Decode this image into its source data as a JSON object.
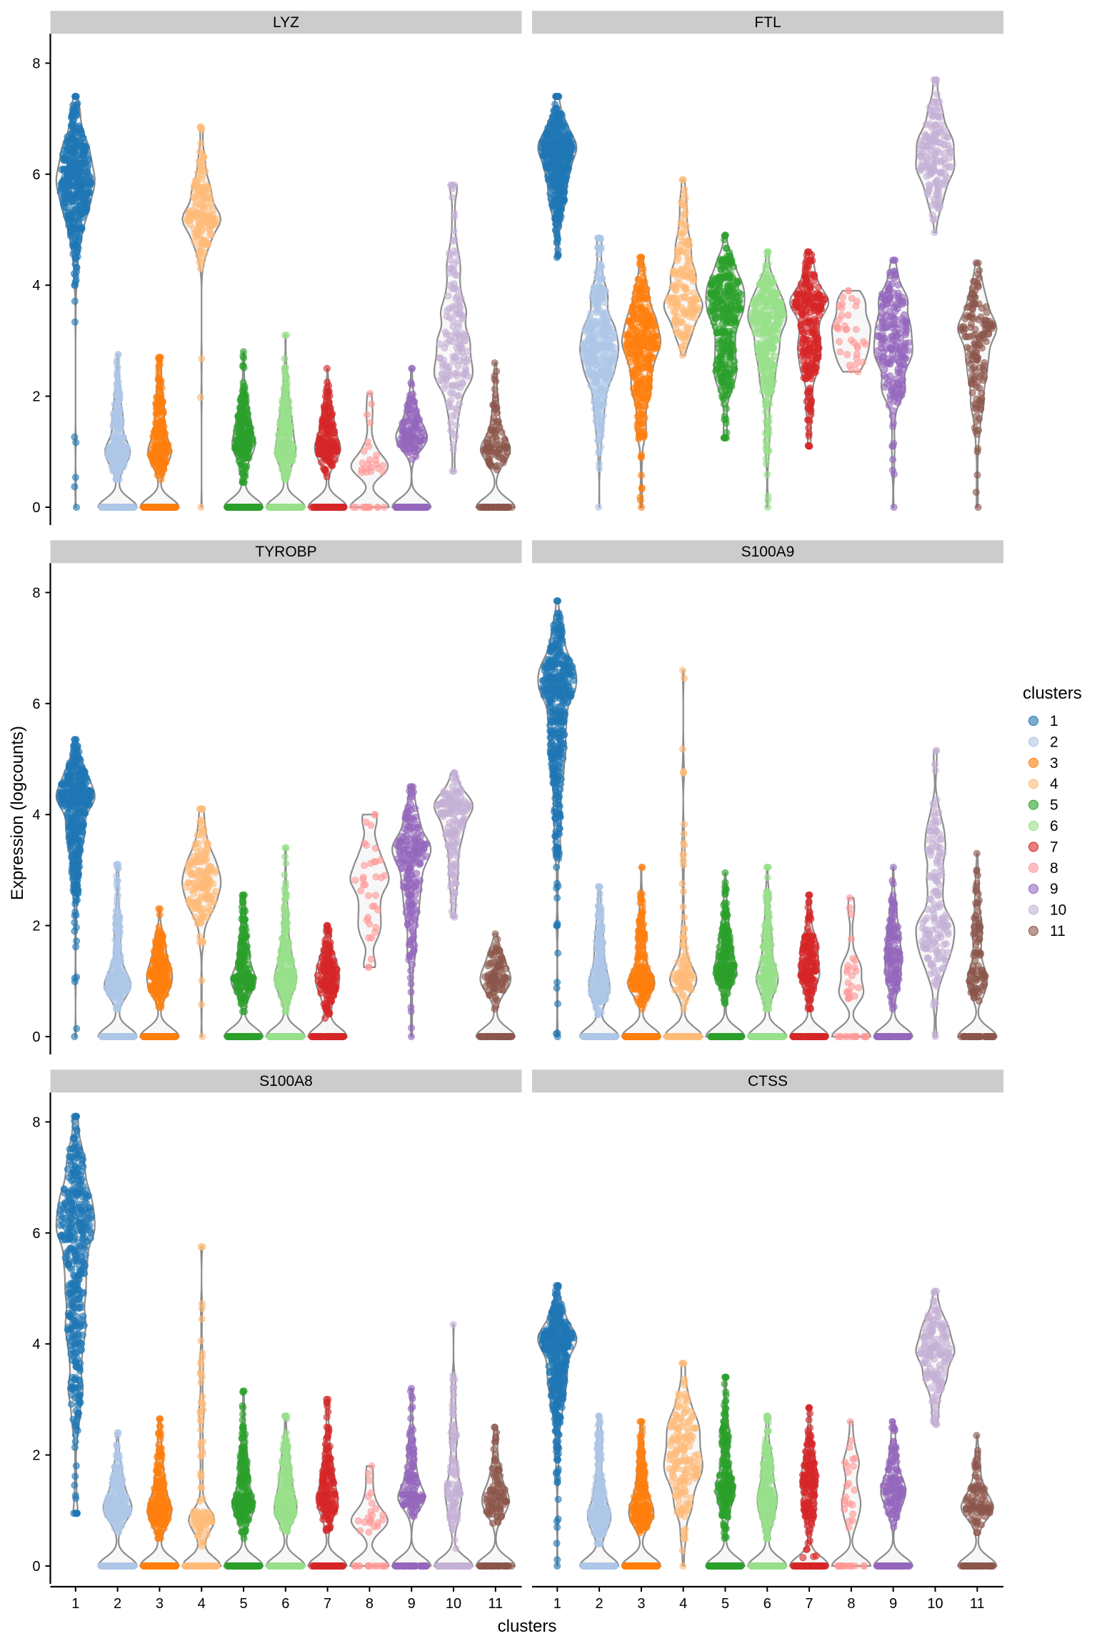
{
  "chart_data": {
    "type": "violin",
    "xlabel": "clusters",
    "ylabel": "Expression (logcounts)",
    "categories": [
      "1",
      "2",
      "3",
      "4",
      "5",
      "6",
      "7",
      "8",
      "9",
      "10",
      "11"
    ],
    "yticks": [
      "0",
      "2",
      "4",
      "6",
      "8"
    ],
    "ylim": [
      -0.3,
      8.5
    ],
    "grid": false,
    "legend": {
      "title": "clusters",
      "placement": "right",
      "labels": [
        "1",
        "2",
        "3",
        "4",
        "5",
        "6",
        "7",
        "8",
        "9",
        "10",
        "11"
      ]
    },
    "colors": [
      "#1f77b4",
      "#aec7e8",
      "#ff7f0e",
      "#ffbb78",
      "#2ca02c",
      "#98df8a",
      "#d62728",
      "#ff9896",
      "#9467bd",
      "#c5b0d5",
      "#8c564b"
    ],
    "violin_fill": "#f7f7f7",
    "violin_stroke": "#8c8c8c",
    "facets": [
      {
        "gene": "LYZ",
        "clusters": [
          {
            "median": 5.85,
            "low": 4.0,
            "max": 7.4,
            "min": 0,
            "zeros": false
          },
          {
            "median": 1.1,
            "low": 0.5,
            "max": 2.75,
            "min": 0.5,
            "zeros": true
          },
          {
            "median": 1.1,
            "low": 0.5,
            "max": 2.7,
            "min": 0.5,
            "zeros": true
          },
          {
            "median": 5.3,
            "low": 4.3,
            "max": 6.85,
            "min": 0,
            "zeros": false
          },
          {
            "median": 1.25,
            "low": 0.45,
            "max": 2.8,
            "min": 0.45,
            "zeros": true
          },
          {
            "median": 1.2,
            "low": 0.4,
            "max": 3.1,
            "min": 0.4,
            "zeros": true
          },
          {
            "median": 1.2,
            "low": 0.55,
            "max": 2.5,
            "min": 0.55,
            "zeros": true
          },
          {
            "median": 0.8,
            "low": 0.5,
            "max": 2.05,
            "min": 0.5,
            "zeros": true
          },
          {
            "median": 1.3,
            "low": 0.85,
            "max": 2.5,
            "min": 0.85,
            "zeros": true
          },
          {
            "median": 2.9,
            "low": 0.65,
            "max": 5.8,
            "min": 0.65,
            "zeros": false
          },
          {
            "median": 1.15,
            "low": 0.6,
            "max": 2.6,
            "min": 0.6,
            "zeros": true
          }
        ]
      },
      {
        "gene": "FTL",
        "clusters": [
          {
            "median": 6.3,
            "low": 4.5,
            "max": 7.4,
            "min": 4.5,
            "zeros": false
          },
          {
            "median": 3.0,
            "low": 1.2,
            "max": 4.85,
            "min": 0,
            "zeros": false
          },
          {
            "median": 3.0,
            "low": 0.9,
            "max": 4.5,
            "min": 0,
            "zeros": false
          },
          {
            "median": 3.8,
            "low": 2.65,
            "max": 5.9,
            "min": 2.65,
            "zeros": false
          },
          {
            "median": 3.5,
            "low": 1.25,
            "max": 4.9,
            "min": 1.25,
            "zeros": false
          },
          {
            "median": 3.3,
            "low": 1.0,
            "max": 4.6,
            "min": 0,
            "zeros": false
          },
          {
            "median": 3.5,
            "low": 1.1,
            "max": 4.6,
            "min": 1.1,
            "zeros": false
          },
          {
            "median": 3.2,
            "low": 2.3,
            "max": 3.9,
            "min": 2.3,
            "zeros": false
          },
          {
            "median": 3.2,
            "low": 1.1,
            "max": 4.45,
            "min": 0,
            "zeros": false
          },
          {
            "median": 6.3,
            "low": 4.95,
            "max": 7.7,
            "min": 4.95,
            "zeros": false
          },
          {
            "median": 3.1,
            "low": 1.0,
            "max": 4.4,
            "min": 0,
            "zeros": false
          }
        ]
      },
      {
        "gene": "TYROBP",
        "clusters": [
          {
            "median": 4.2,
            "low": 1.9,
            "max": 5.35,
            "min": 0,
            "zeros": false
          },
          {
            "median": 1.0,
            "low": 0.5,
            "max": 3.1,
            "min": 0.5,
            "zeros": true
          },
          {
            "median": 1.1,
            "low": 0.5,
            "max": 2.3,
            "min": 0.5,
            "zeros": true
          },
          {
            "median": 2.9,
            "low": 1.7,
            "max": 4.1,
            "min": 0,
            "zeros": false
          },
          {
            "median": 1.1,
            "low": 0.45,
            "max": 2.55,
            "min": 0.45,
            "zeros": true
          },
          {
            "median": 1.2,
            "low": 0.45,
            "max": 3.4,
            "min": 0.45,
            "zeros": true
          },
          {
            "median": 1.1,
            "low": 0.25,
            "max": 2.0,
            "min": 0.25,
            "zeros": true
          },
          {
            "median": 2.7,
            "low": 1.25,
            "max": 4.0,
            "min": 1.25,
            "zeros": false
          },
          {
            "median": 3.2,
            "low": 0.8,
            "max": 4.5,
            "min": 0,
            "zeros": false
          },
          {
            "median": 4.0,
            "low": 2.0,
            "max": 4.75,
            "min": 2.0,
            "zeros": false
          },
          {
            "median": 1.1,
            "low": 0.5,
            "max": 1.85,
            "min": 0.5,
            "zeros": true
          }
        ]
      },
      {
        "gene": "S100A9",
        "clusters": [
          {
            "median": 6.1,
            "low": 2.0,
            "max": 7.85,
            "min": 0,
            "zeros": false
          },
          {
            "median": 1.1,
            "low": 0.4,
            "max": 2.7,
            "min": 0.4,
            "zeros": true
          },
          {
            "median": 1.1,
            "low": 0.5,
            "max": 3.05,
            "min": 0.5,
            "zeros": true
          },
          {
            "median": 1.2,
            "low": 0.5,
            "max": 6.6,
            "min": 0.5,
            "zeros": true
          },
          {
            "median": 1.3,
            "low": 0.6,
            "max": 2.95,
            "min": 0.6,
            "zeros": true
          },
          {
            "median": 1.2,
            "low": 0.5,
            "max": 3.05,
            "min": 0.5,
            "zeros": true
          },
          {
            "median": 1.3,
            "low": 0.5,
            "max": 2.55,
            "min": 0.5,
            "zeros": true
          },
          {
            "median": 0.9,
            "low": 0.6,
            "max": 2.5,
            "min": 0.6,
            "zeros": true
          },
          {
            "median": 1.5,
            "low": 0.5,
            "max": 3.05,
            "min": 0.5,
            "zeros": true
          },
          {
            "median": 2.2,
            "low": 0.6,
            "max": 5.15,
            "min": 0,
            "zeros": false
          },
          {
            "median": 1.2,
            "low": 0.6,
            "max": 3.3,
            "min": 0.6,
            "zeros": true
          }
        ]
      },
      {
        "gene": "S100A8",
        "clusters": [
          {
            "median": 5.9,
            "low": 0.95,
            "max": 8.1,
            "min": 0.95,
            "zeros": false
          },
          {
            "median": 1.1,
            "low": 0.6,
            "max": 2.4,
            "min": 0.6,
            "zeros": true
          },
          {
            "median": 1.1,
            "low": 0.5,
            "max": 2.65,
            "min": 0.5,
            "zeros": true
          },
          {
            "median": 1.0,
            "low": 0.3,
            "max": 5.75,
            "min": 0.3,
            "zeros": true
          },
          {
            "median": 1.3,
            "low": 0.5,
            "max": 3.15,
            "min": 0.5,
            "zeros": true
          },
          {
            "median": 1.2,
            "low": 0.55,
            "max": 2.7,
            "min": 0.55,
            "zeros": true
          },
          {
            "median": 1.3,
            "low": 0.6,
            "max": 3.0,
            "min": 0.6,
            "zeros": true
          },
          {
            "median": 0.9,
            "low": 0.5,
            "max": 1.8,
            "min": 0.5,
            "zeros": true
          },
          {
            "median": 1.3,
            "low": 0.9,
            "max": 3.2,
            "min": 0.9,
            "zeros": true
          },
          {
            "median": 1.4,
            "low": 0.3,
            "max": 4.35,
            "min": 0.3,
            "zeros": true
          },
          {
            "median": 1.2,
            "low": 0.7,
            "max": 2.5,
            "min": 0.7,
            "zeros": true
          }
        ]
      },
      {
        "gene": "CTSS",
        "clusters": [
          {
            "median": 3.9,
            "low": 1.5,
            "max": 5.05,
            "min": 0,
            "zeros": false
          },
          {
            "median": 1.0,
            "low": 0.4,
            "max": 2.7,
            "min": 0.4,
            "zeros": true
          },
          {
            "median": 1.1,
            "low": 0.6,
            "max": 2.6,
            "min": 0.6,
            "zeros": true
          },
          {
            "median": 1.9,
            "low": 0.5,
            "max": 3.65,
            "min": 0,
            "zeros": false
          },
          {
            "median": 1.5,
            "low": 0.5,
            "max": 3.4,
            "min": 0.5,
            "zeros": true
          },
          {
            "median": 1.3,
            "low": 0.5,
            "max": 2.7,
            "min": 0.5,
            "zeros": true
          },
          {
            "median": 1.5,
            "low": 0.15,
            "max": 2.85,
            "min": 0.15,
            "zeros": true
          },
          {
            "median": 1.5,
            "low": 0.5,
            "max": 2.6,
            "min": 0.5,
            "zeros": true
          },
          {
            "median": 1.4,
            "low": 0.7,
            "max": 2.6,
            "min": 0.7,
            "zeros": true
          },
          {
            "median": 3.9,
            "low": 2.55,
            "max": 4.95,
            "min": 2.55,
            "zeros": false
          },
          {
            "median": 1.1,
            "low": 0.6,
            "max": 2.35,
            "min": 0.6,
            "zeros": true
          }
        ]
      }
    ]
  }
}
